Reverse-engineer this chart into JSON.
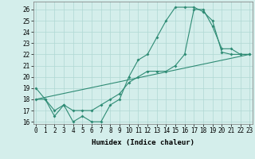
{
  "xlabel": "Humidex (Indice chaleur)",
  "series": [
    {
      "x": [
        0,
        1,
        2,
        3,
        4,
        5,
        6,
        7,
        8,
        9,
        10,
        11,
        12,
        13,
        14,
        15,
        16,
        17,
        18,
        19,
        20,
        21,
        22,
        23
      ],
      "y": [
        19,
        18,
        16.5,
        17.5,
        16,
        16.5,
        16,
        16,
        17.5,
        18,
        20,
        21.5,
        22,
        23.5,
        25,
        26.2,
        26.2,
        26.2,
        25.8,
        25,
        22.2,
        22,
        22,
        22
      ]
    },
    {
      "x": [
        0,
        23
      ],
      "y": [
        18,
        22
      ]
    },
    {
      "x": [
        0,
        1,
        2,
        3,
        4,
        5,
        6,
        7,
        8,
        9,
        10,
        11,
        12,
        13,
        14,
        15,
        16,
        17,
        18,
        19,
        20,
        21,
        22,
        23
      ],
      "y": [
        18,
        18,
        17,
        17.5,
        17,
        17,
        17,
        17.5,
        18,
        18.5,
        19.5,
        20,
        20.5,
        20.5,
        20.5,
        21,
        22,
        26,
        26,
        24.5,
        22.5,
        22.5,
        22,
        22
      ]
    }
  ],
  "xlim": [
    -0.3,
    23.3
  ],
  "ylim": [
    15.8,
    26.7
  ],
  "yticks": [
    16,
    17,
    18,
    19,
    20,
    21,
    22,
    23,
    24,
    25,
    26
  ],
  "xticks": [
    0,
    1,
    2,
    3,
    4,
    5,
    6,
    7,
    8,
    9,
    10,
    11,
    12,
    13,
    14,
    15,
    16,
    17,
    18,
    19,
    20,
    21,
    22,
    23
  ],
  "line_color": "#2E8B74",
  "bg_color": "#D4EEEB",
  "grid_color": "#B0D8D4",
  "tick_fontsize": 5.5,
  "xlabel_fontsize": 6.5
}
